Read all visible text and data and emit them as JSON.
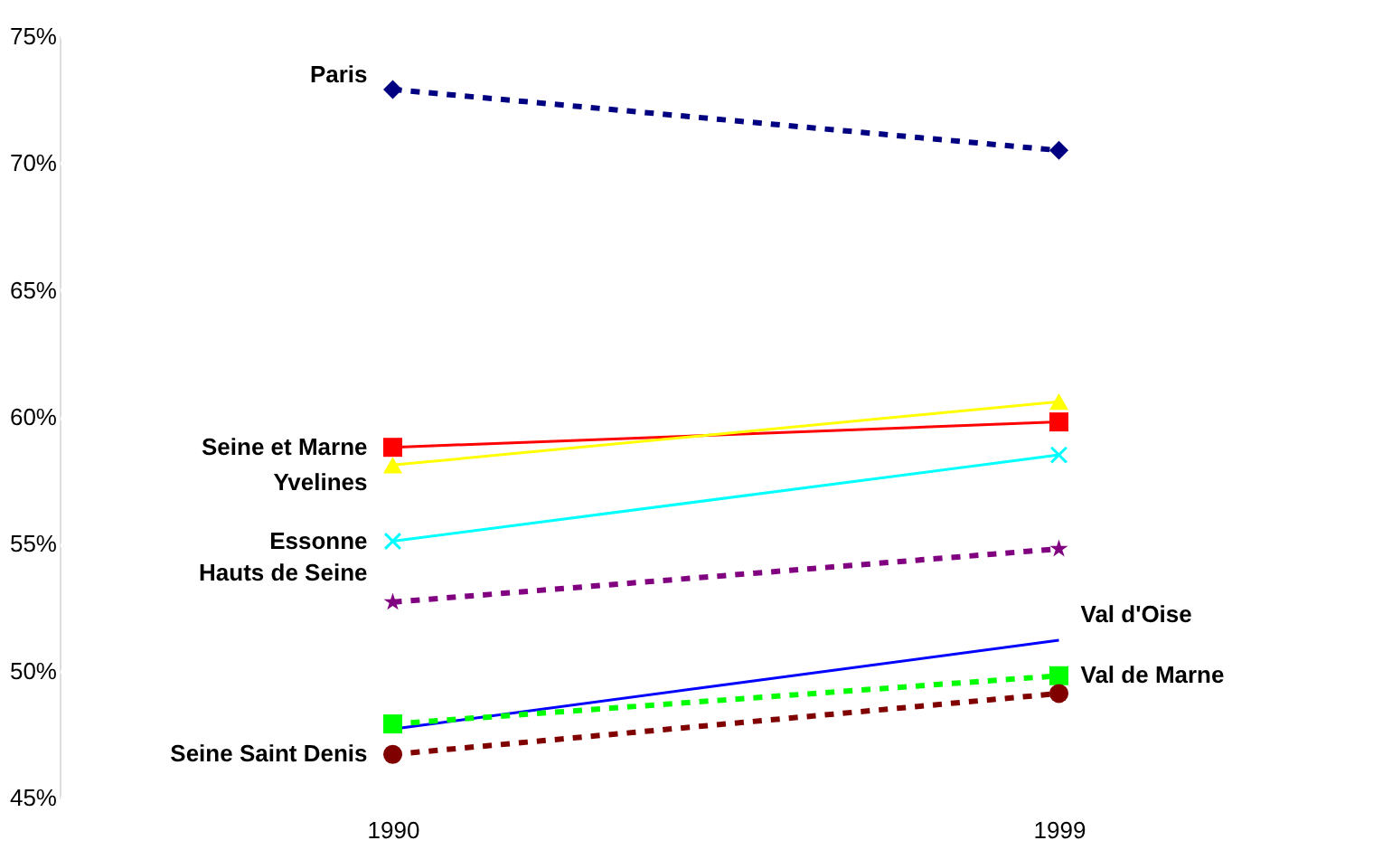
{
  "chart_data": {
    "type": "line",
    "categories": [
      "1990",
      "1999"
    ],
    "ylim": [
      45,
      75
    ],
    "yticks": [
      {
        "value": 45,
        "label": "45%"
      },
      {
        "value": 50,
        "label": "50%"
      },
      {
        "value": 55,
        "label": "55%"
      },
      {
        "value": 60,
        "label": "60%"
      },
      {
        "value": 65,
        "label": "65%"
      },
      {
        "value": 70,
        "label": "70%"
      },
      {
        "value": 75,
        "label": "75%"
      }
    ],
    "grid": "y",
    "series": [
      {
        "name": "Paris",
        "color": "#000080",
        "values": [
          72.9,
          70.5
        ],
        "marker": "diamond",
        "line_style": "dashed"
      },
      {
        "name": "Seine et Marne",
        "color": "#ff0000",
        "values": [
          58.8,
          59.8
        ],
        "marker": "square",
        "line_style": "solid"
      },
      {
        "name": "Yvelines",
        "color": "#ffff00",
        "values": [
          58.1,
          60.6
        ],
        "marker": "triangle",
        "line_style": "solid"
      },
      {
        "name": "Essonne",
        "color": "#00ffff",
        "values": [
          55.1,
          58.5
        ],
        "marker": "cross",
        "line_style": "solid"
      },
      {
        "name": "Hauts de Seine",
        "color": "#800080",
        "values": [
          52.7,
          54.8
        ],
        "marker": "star",
        "line_style": "dashed"
      },
      {
        "name": "Val d'Oise",
        "color": "#0000ff",
        "values": [
          47.7,
          51.2
        ],
        "line_style": "solid"
      },
      {
        "name": "Val de Marne",
        "color": "#00ff00",
        "values": [
          47.9,
          49.8
        ],
        "marker": "square",
        "line_style": "dashed"
      },
      {
        "name": "Seine Saint Denis",
        "color": "#800000",
        "values": [
          46.7,
          49.1
        ],
        "marker": "circle",
        "line_style": "dashed"
      }
    ]
  }
}
